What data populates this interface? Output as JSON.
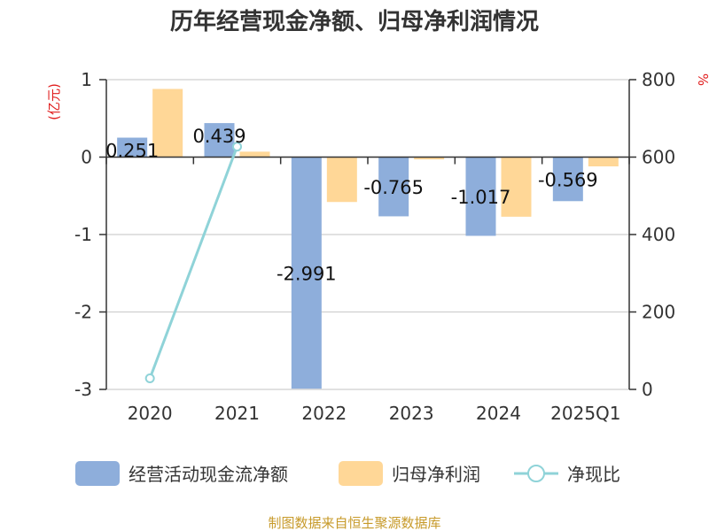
{
  "chart_data": {
    "type": "bar",
    "title": "历年经营现金净额、归母净利润情况",
    "categories": [
      "2020",
      "2021",
      "2022",
      "2023",
      "2024",
      "2025Q1"
    ],
    "ylabel_left": "(亿元)",
    "ylabel_right": "%",
    "ylim_left": [
      -3,
      1
    ],
    "ylim_right": [
      0,
      800
    ],
    "yticks_left": [
      "1",
      "0",
      "-1",
      "-2",
      "-3"
    ],
    "yticks_right": [
      "800",
      "600",
      "400",
      "200",
      "0"
    ],
    "series": [
      {
        "name": "经营活动现金流净额",
        "type": "bar",
        "axis": "left",
        "values": [
          0.251,
          0.439,
          -2.991,
          -0.765,
          -1.017,
          -0.569
        ],
        "labels": [
          "0.251",
          "0.439",
          "-2.991",
          "-0.765",
          "-1.017",
          "-0.569"
        ],
        "color": "#8eaedb"
      },
      {
        "name": "归母净利润",
        "type": "bar",
        "axis": "left",
        "values": [
          0.88,
          0.07,
          -0.58,
          -0.03,
          -0.77,
          -0.12
        ],
        "color": "#ffd797"
      },
      {
        "name": "净现比",
        "type": "line",
        "axis": "right",
        "values": [
          28.5,
          627,
          null,
          null,
          null,
          null
        ],
        "color": "#8fd3d8"
      }
    ],
    "grid": true,
    "legend": "bottom",
    "title_color": "#333333",
    "unit_color": "#e01c1c",
    "source_text": "制图数据来自恒生聚源数据库",
    "source_color": "#c79a2a"
  }
}
